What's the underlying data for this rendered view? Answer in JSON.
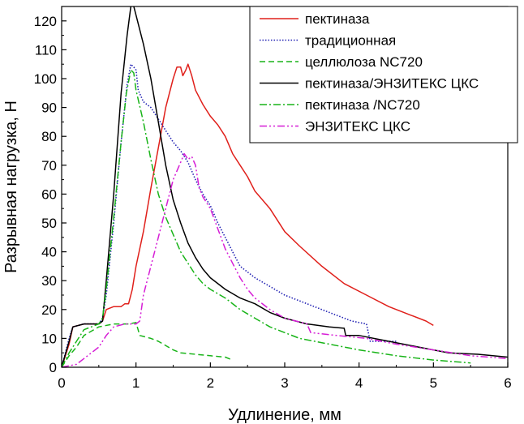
{
  "chart_data": {
    "type": "line",
    "title": "",
    "xlabel": "Удлинение, мм",
    "ylabel": "Разрывная нагрузка, Н",
    "xlim": [
      0,
      6
    ],
    "ylim": [
      0,
      125
    ],
    "xticks": [
      0,
      1,
      2,
      3,
      4,
      5,
      6
    ],
    "xtick_labels": [
      "0",
      "1",
      "2",
      "3",
      "4",
      "5",
      "6"
    ],
    "yticks": [
      0,
      10,
      20,
      30,
      40,
      50,
      60,
      70,
      80,
      90,
      100,
      110,
      120
    ],
    "ytick_labels": [
      "0",
      "10",
      "20",
      "30",
      "40",
      "50",
      "60",
      "70",
      "80",
      "90",
      "100",
      "110",
      "120"
    ],
    "grid": false,
    "legend_position": "top-right",
    "series": [
      {
        "name": "пектиназа",
        "color": "#e0201b",
        "style": "solid",
        "points": [
          [
            0,
            0
          ],
          [
            0.1,
            8
          ],
          [
            0.15,
            14
          ],
          [
            0.3,
            15
          ],
          [
            0.5,
            15
          ],
          [
            0.55,
            16
          ],
          [
            0.6,
            20
          ],
          [
            0.7,
            21
          ],
          [
            0.8,
            21
          ],
          [
            0.85,
            22
          ],
          [
            0.9,
            22
          ],
          [
            0.95,
            27
          ],
          [
            1.0,
            35
          ],
          [
            1.1,
            47
          ],
          [
            1.2,
            62
          ],
          [
            1.3,
            76
          ],
          [
            1.4,
            90
          ],
          [
            1.5,
            100
          ],
          [
            1.55,
            104
          ],
          [
            1.6,
            104
          ],
          [
            1.63,
            101
          ],
          [
            1.67,
            103
          ],
          [
            1.7,
            105
          ],
          [
            1.75,
            101
          ],
          [
            1.8,
            96
          ],
          [
            1.9,
            91
          ],
          [
            2.0,
            87
          ],
          [
            2.1,
            84
          ],
          [
            2.2,
            80
          ],
          [
            2.3,
            74
          ],
          [
            2.4,
            70
          ],
          [
            2.5,
            66
          ],
          [
            2.6,
            61
          ],
          [
            2.8,
            55
          ],
          [
            3.0,
            47
          ],
          [
            3.2,
            42
          ],
          [
            3.5,
            35
          ],
          [
            3.8,
            29
          ],
          [
            4.1,
            25
          ],
          [
            4.4,
            21
          ],
          [
            4.7,
            18
          ],
          [
            4.9,
            16
          ],
          [
            5.0,
            14.5
          ]
        ]
      },
      {
        "name": "традиционная",
        "color": "#2323b4",
        "style": "dotted",
        "points": [
          [
            0,
            0
          ],
          [
            0.1,
            10
          ],
          [
            0.15,
            14
          ],
          [
            0.3,
            15
          ],
          [
            0.5,
            15
          ],
          [
            0.55,
            17
          ],
          [
            0.6,
            25
          ],
          [
            0.7,
            50
          ],
          [
            0.8,
            78
          ],
          [
            0.88,
            98
          ],
          [
            0.93,
            105
          ],
          [
            0.97,
            104
          ],
          [
            1.0,
            103
          ],
          [
            1.03,
            96
          ],
          [
            1.1,
            92
          ],
          [
            1.2,
            90
          ],
          [
            1.3,
            86
          ],
          [
            1.4,
            82
          ],
          [
            1.5,
            78
          ],
          [
            1.6,
            75
          ],
          [
            1.7,
            71
          ],
          [
            1.8,
            65
          ],
          [
            1.9,
            60
          ],
          [
            2.0,
            56
          ],
          [
            2.1,
            50
          ],
          [
            2.2,
            45
          ],
          [
            2.3,
            40
          ],
          [
            2.4,
            35
          ],
          [
            2.6,
            31
          ],
          [
            2.8,
            28
          ],
          [
            3.0,
            25
          ],
          [
            3.3,
            22
          ],
          [
            3.6,
            19
          ],
          [
            3.9,
            16
          ],
          [
            4.1,
            15
          ],
          [
            4.15,
            9
          ],
          [
            4.3,
            9
          ],
          [
            4.5,
            9
          ]
        ]
      },
      {
        "name": "целлюлоза NC720",
        "color": "#18b418",
        "style": "dashed",
        "points": [
          [
            0,
            0
          ],
          [
            0.1,
            4
          ],
          [
            0.2,
            7
          ],
          [
            0.3,
            11
          ],
          [
            0.5,
            14
          ],
          [
            0.7,
            15
          ],
          [
            0.9,
            15
          ],
          [
            1.0,
            15.5
          ],
          [
            1.05,
            11
          ],
          [
            1.2,
            10
          ],
          [
            1.3,
            9
          ],
          [
            1.5,
            6
          ],
          [
            1.6,
            5
          ],
          [
            1.8,
            4.5
          ],
          [
            2.0,
            4
          ],
          [
            2.2,
            3.5
          ],
          [
            2.3,
            2.5
          ]
        ]
      },
      {
        "name": "пектиназа/ЭНЗИТЕКС ЦКС",
        "color": "#000000",
        "style": "solid",
        "points": [
          [
            0,
            0
          ],
          [
            0.1,
            9
          ],
          [
            0.15,
            14
          ],
          [
            0.3,
            15
          ],
          [
            0.5,
            15
          ],
          [
            0.55,
            16
          ],
          [
            0.6,
            30
          ],
          [
            0.7,
            60
          ],
          [
            0.8,
            95
          ],
          [
            0.88,
            115
          ],
          [
            0.93,
            125
          ],
          [
            0.96,
            126
          ],
          [
            1.0,
            122
          ],
          [
            1.1,
            112
          ],
          [
            1.2,
            100
          ],
          [
            1.3,
            85
          ],
          [
            1.4,
            70
          ],
          [
            1.5,
            58
          ],
          [
            1.6,
            50
          ],
          [
            1.7,
            43
          ],
          [
            1.8,
            38
          ],
          [
            1.9,
            34
          ],
          [
            2.0,
            31
          ],
          [
            2.2,
            27
          ],
          [
            2.4,
            24
          ],
          [
            2.6,
            22
          ],
          [
            2.8,
            19
          ],
          [
            3.0,
            17
          ],
          [
            3.3,
            15
          ],
          [
            3.6,
            14
          ],
          [
            3.8,
            13.5
          ],
          [
            3.82,
            11
          ],
          [
            4.0,
            11
          ],
          [
            4.4,
            9
          ],
          [
            4.8,
            7
          ],
          [
            5.2,
            5
          ],
          [
            5.6,
            4.5
          ],
          [
            6.0,
            3.5
          ]
        ]
      },
      {
        "name": "пектиназа /NC720",
        "color": "#18b418",
        "style": "dashdot",
        "points": [
          [
            0,
            0
          ],
          [
            0.1,
            5
          ],
          [
            0.2,
            9
          ],
          [
            0.3,
            13
          ],
          [
            0.5,
            15
          ],
          [
            0.55,
            17
          ],
          [
            0.6,
            27
          ],
          [
            0.7,
            52
          ],
          [
            0.8,
            78
          ],
          [
            0.87,
            95
          ],
          [
            0.93,
            103
          ],
          [
            0.97,
            102
          ],
          [
            1.0,
            96
          ],
          [
            1.1,
            85
          ],
          [
            1.2,
            72
          ],
          [
            1.3,
            60
          ],
          [
            1.4,
            52
          ],
          [
            1.5,
            46
          ],
          [
            1.6,
            40
          ],
          [
            1.7,
            36
          ],
          [
            1.8,
            32
          ],
          [
            1.9,
            29
          ],
          [
            2.0,
            27
          ],
          [
            2.2,
            24
          ],
          [
            2.4,
            20
          ],
          [
            2.6,
            17
          ],
          [
            2.8,
            14
          ],
          [
            3.0,
            12
          ],
          [
            3.2,
            10
          ],
          [
            3.6,
            8
          ],
          [
            4.0,
            6
          ],
          [
            4.5,
            4
          ],
          [
            5.0,
            2.5
          ],
          [
            5.5,
            1.5
          ]
        ]
      },
      {
        "name": "ЭНЗИТЕКС ЦКС",
        "color": "#d61ed6",
        "style": "dashdotdot",
        "points": [
          [
            0,
            0
          ],
          [
            0.2,
            1
          ],
          [
            0.3,
            3
          ],
          [
            0.4,
            5
          ],
          [
            0.5,
            7
          ],
          [
            0.6,
            11
          ],
          [
            0.7,
            14
          ],
          [
            0.85,
            15
          ],
          [
            1.0,
            15
          ],
          [
            1.05,
            16
          ],
          [
            1.1,
            25
          ],
          [
            1.2,
            35
          ],
          [
            1.3,
            45
          ],
          [
            1.4,
            55
          ],
          [
            1.5,
            65
          ],
          [
            1.6,
            71
          ],
          [
            1.65,
            74
          ],
          [
            1.7,
            72
          ],
          [
            1.75,
            73
          ],
          [
            1.8,
            70
          ],
          [
            1.85,
            62
          ],
          [
            1.9,
            59
          ],
          [
            2.0,
            55
          ],
          [
            2.1,
            48
          ],
          [
            2.2,
            41
          ],
          [
            2.3,
            36
          ],
          [
            2.4,
            31
          ],
          [
            2.5,
            27
          ],
          [
            2.6,
            24
          ],
          [
            2.8,
            20
          ],
          [
            3.0,
            17
          ],
          [
            3.3,
            15
          ],
          [
            3.35,
            12
          ],
          [
            3.7,
            11
          ],
          [
            4.1,
            10
          ],
          [
            4.5,
            8
          ],
          [
            5.0,
            6
          ],
          [
            5.5,
            4
          ],
          [
            6.0,
            3
          ]
        ]
      }
    ]
  }
}
